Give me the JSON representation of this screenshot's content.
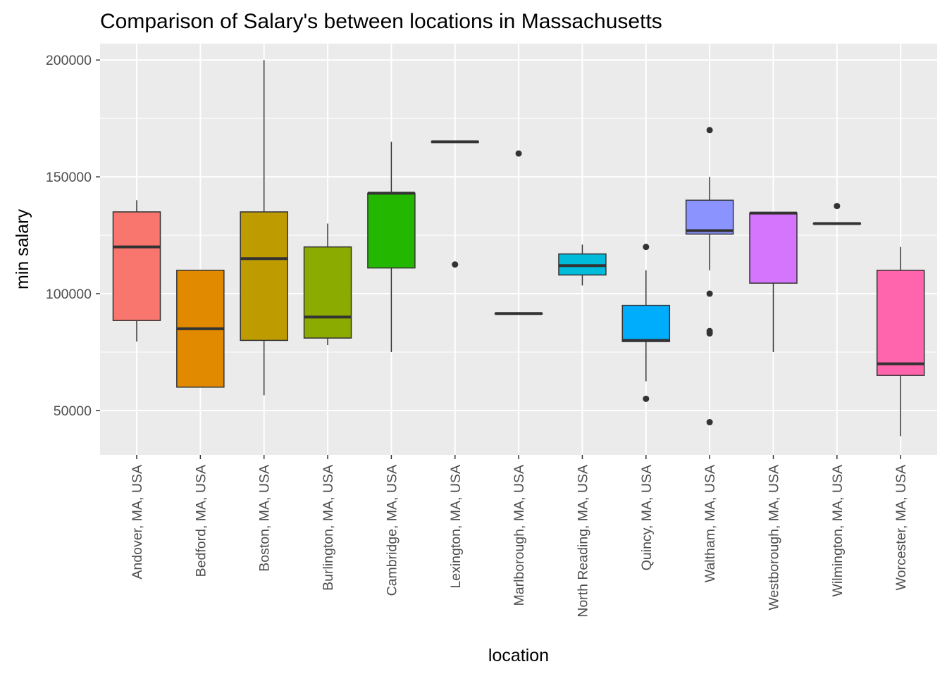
{
  "chart_data": {
    "type": "boxplot",
    "title": "Comparison of Salary's between locations in Massachusetts",
    "xlabel": "location",
    "ylabel": "min salary",
    "ylim": [
      31000,
      207000
    ],
    "yticks": [
      50000,
      100000,
      150000,
      200000
    ],
    "grid": true,
    "legend": "none",
    "categories": [
      "Andover, MA, USA",
      "Bedford, MA, USA",
      "Boston, MA, USA",
      "Burlington, MA, USA",
      "Cambridge, MA, USA",
      "Lexington, MA, USA",
      "Marlborough, MA, USA",
      "North Reading, MA, USA",
      "Quincy, MA, USA",
      "Waltham, MA, USA",
      "Westborough, MA, USA",
      "Wilmington, MA, USA",
      "Worcester, MA, USA"
    ],
    "boxes": [
      {
        "min": 79500,
        "q1": 88500,
        "median": 120000,
        "q3": 135000,
        "max": 140000,
        "outliers": [],
        "color": "#F8766D"
      },
      {
        "min": 60000,
        "q1": 60000,
        "median": 85000,
        "q3": 110000,
        "max": 110000,
        "outliers": [],
        "color": "#E18A00"
      },
      {
        "min": 56500,
        "q1": 80000,
        "median": 115000,
        "q3": 135000,
        "max": 200000,
        "outliers": [],
        "color": "#BE9C00"
      },
      {
        "min": 78000,
        "q1": 81000,
        "median": 90000,
        "q3": 120000,
        "max": 130000,
        "outliers": [],
        "color": "#8CAB00"
      },
      {
        "min": 75000,
        "q1": 111000,
        "median": 143000,
        "q3": 143000,
        "max": 165000,
        "outliers": [],
        "color": "#24B700"
      },
      {
        "min": 165000,
        "q1": 165000,
        "median": 165000,
        "q3": 165000,
        "max": 165000,
        "outliers": [
          112500
        ],
        "color": "#00BE70"
      },
      {
        "min": 91500,
        "q1": 91500,
        "median": 91500,
        "q3": 91500,
        "max": 91500,
        "outliers": [
          160000
        ],
        "color": "#00C1AB"
      },
      {
        "min": 103500,
        "q1": 108000,
        "median": 112000,
        "q3": 117000,
        "max": 121000,
        "outliers": [],
        "color": "#00BBDA"
      },
      {
        "min": 62500,
        "q1": 79500,
        "median": 80000,
        "q3": 95000,
        "max": 110000,
        "outliers": [
          120000,
          55000
        ],
        "color": "#00ACFC"
      },
      {
        "min": 110000,
        "q1": 125500,
        "median": 127000,
        "q3": 140000,
        "max": 150000,
        "outliers": [
          170000,
          100000,
          84000,
          83000,
          45000
        ],
        "color": "#8B93FF"
      },
      {
        "min": 75000,
        "q1": 104500,
        "median": 134500,
        "q3": 134500,
        "max": 134500,
        "outliers": [],
        "color": "#D575FE"
      },
      {
        "min": 130000,
        "q1": 130000,
        "median": 130000,
        "q3": 130000,
        "max": 130000,
        "outliers": [
          137500
        ],
        "color": "#F962DD"
      },
      {
        "min": 39000,
        "q1": 65000,
        "median": 70000,
        "q3": 110000,
        "max": 120000,
        "outliers": [],
        "color": "#FF65AC"
      }
    ]
  }
}
